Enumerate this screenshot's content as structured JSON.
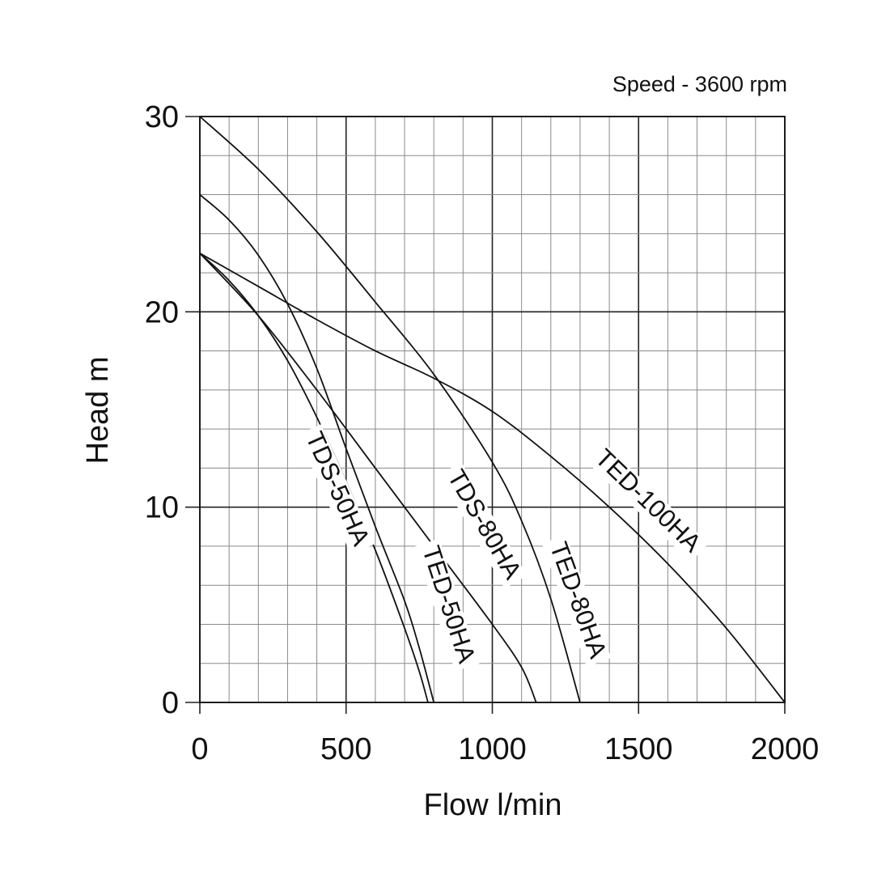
{
  "chart_data": {
    "type": "line",
    "note": "Speed - 3600 rpm",
    "xlabel": "Flow l/min",
    "ylabel": "Head m",
    "xlim": [
      0,
      2000
    ],
    "ylim": [
      0,
      30
    ],
    "x_ticks": [
      0,
      500,
      1000,
      1500,
      2000
    ],
    "y_ticks": [
      0,
      10,
      20,
      30
    ],
    "x_minor_step": 100,
    "y_minor_step": 2,
    "grid": true,
    "legend": "none",
    "series": [
      {
        "name": "TDS-50HA",
        "x": [
          0,
          100,
          200,
          300,
          400,
          500,
          600,
          700,
          750,
          780
        ],
        "y": [
          23,
          21.6,
          19.8,
          17.5,
          14.6,
          11.3,
          7.8,
          3.8,
          1.6,
          0
        ]
      },
      {
        "name": "TED-50HA",
        "x": [
          0,
          100,
          200,
          300,
          400,
          500,
          600,
          700,
          750,
          800
        ],
        "y": [
          26,
          24.7,
          22.9,
          20.4,
          17.1,
          13.0,
          9.0,
          5.2,
          2.8,
          0
        ]
      },
      {
        "name": "TDS-80HA",
        "x": [
          0,
          200,
          400,
          600,
          800,
          1000,
          1100,
          1150
        ],
        "y": [
          23,
          19.8,
          16.0,
          12.0,
          8.0,
          4.0,
          1.8,
          0
        ]
      },
      {
        "name": "TED-80HA",
        "x": [
          0,
          200,
          400,
          600,
          800,
          1000,
          1100,
          1200,
          1300
        ],
        "y": [
          30,
          27.3,
          24.1,
          20.5,
          16.8,
          12.3,
          9.3,
          5.3,
          0
        ]
      },
      {
        "name": "TED-100HA",
        "x": [
          0,
          200,
          400,
          600,
          800,
          1000,
          1200,
          1400,
          1600,
          1800,
          2000
        ],
        "y": [
          23,
          21.3,
          19.6,
          18.0,
          16.6,
          14.9,
          12.6,
          10.0,
          7.1,
          3.8,
          0
        ]
      }
    ]
  }
}
